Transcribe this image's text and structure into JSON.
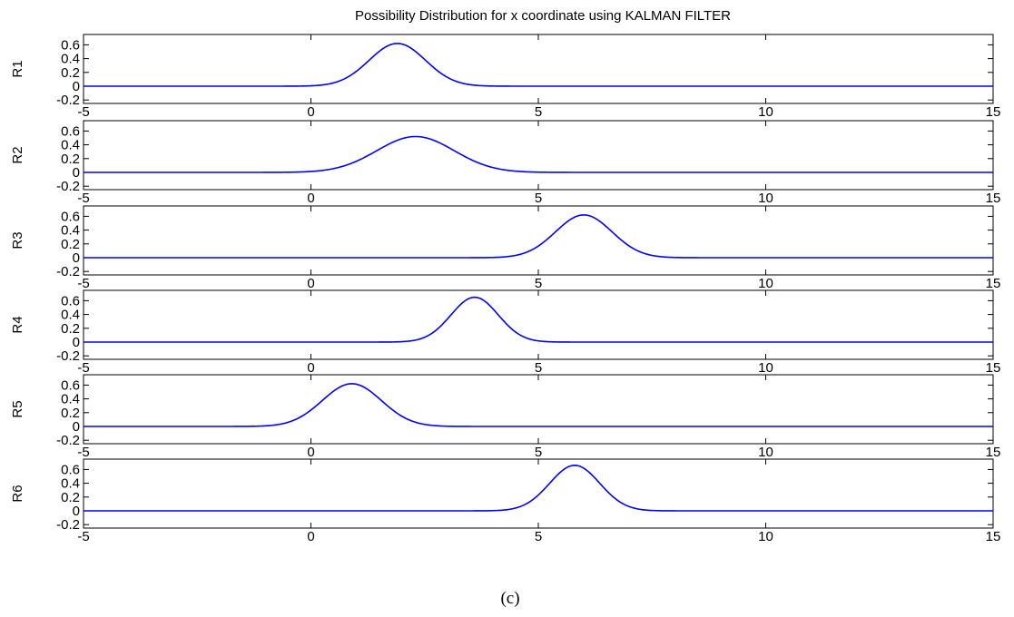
{
  "figure": {
    "title": "Possibility Distribution for x coordinate using KALMAN FILTER",
    "caption": "(c)"
  },
  "colors": {
    "line": "#0000ff",
    "axes": "#000000"
  },
  "chart_data": [
    {
      "type": "line",
      "ylabel": "R1",
      "xlim": [
        -5,
        15
      ],
      "ylim": [
        -0.25,
        0.75
      ],
      "xticks": [
        "-5",
        "0",
        "5",
        "10",
        "15"
      ],
      "yticks": [
        "0.6",
        "0.4",
        "0.2",
        "0",
        "-0.2"
      ],
      "series": [
        {
          "gaussian": {
            "peak": 0.62,
            "center": 1.9,
            "sigma": 0.62
          },
          "x_range": [
            -5,
            15
          ]
        }
      ]
    },
    {
      "type": "line",
      "ylabel": "R2",
      "xlim": [
        -5,
        15
      ],
      "ylim": [
        -0.25,
        0.75
      ],
      "xticks": [
        "-5",
        "0",
        "5",
        "10",
        "15"
      ],
      "yticks": [
        "0.6",
        "0.4",
        "0.2",
        "0",
        "-0.2"
      ],
      "series": [
        {
          "gaussian": {
            "peak": 0.52,
            "center": 2.3,
            "sigma": 0.85
          },
          "x_range": [
            -5,
            15
          ]
        }
      ]
    },
    {
      "type": "line",
      "ylabel": "R3",
      "xlim": [
        -5,
        15
      ],
      "ylim": [
        -0.25,
        0.75
      ],
      "xticks": [
        "-5",
        "0",
        "5",
        "10",
        "15"
      ],
      "yticks": [
        "0.6",
        "0.4",
        "0.2",
        "0",
        "-0.2"
      ],
      "series": [
        {
          "gaussian": {
            "peak": 0.62,
            "center": 6.0,
            "sigma": 0.62
          },
          "x_range": [
            -5,
            15
          ]
        }
      ]
    },
    {
      "type": "line",
      "ylabel": "R4",
      "xlim": [
        -5,
        15
      ],
      "ylim": [
        -0.25,
        0.75
      ],
      "xticks": [
        "-5",
        "0",
        "5",
        "10",
        "15"
      ],
      "yticks": [
        "0.6",
        "0.4",
        "0.2",
        "0",
        "-0.2"
      ],
      "series": [
        {
          "gaussian": {
            "peak": 0.65,
            "center": 3.6,
            "sigma": 0.52
          },
          "x_range": [
            -5,
            15
          ]
        }
      ]
    },
    {
      "type": "line",
      "ylabel": "R5",
      "xlim": [
        -5,
        15
      ],
      "ylim": [
        -0.25,
        0.75
      ],
      "xticks": [
        "-5",
        "0",
        "5",
        "10",
        "15"
      ],
      "yticks": [
        "0.6",
        "0.4",
        "0.2",
        "0",
        "-0.2"
      ],
      "series": [
        {
          "gaussian": {
            "peak": 0.62,
            "center": 0.9,
            "sigma": 0.65
          },
          "x_range": [
            -5,
            15
          ]
        }
      ]
    },
    {
      "type": "line",
      "ylabel": "R6",
      "xlim": [
        -5,
        15
      ],
      "ylim": [
        -0.25,
        0.75
      ],
      "xticks": [
        "-5",
        "0",
        "5",
        "10",
        "15"
      ],
      "yticks": [
        "0.6",
        "0.4",
        "0.2",
        "0",
        "-0.2"
      ],
      "series": [
        {
          "gaussian": {
            "peak": 0.66,
            "center": 5.8,
            "sigma": 0.55
          },
          "x_range": [
            -5,
            15
          ]
        }
      ]
    }
  ]
}
